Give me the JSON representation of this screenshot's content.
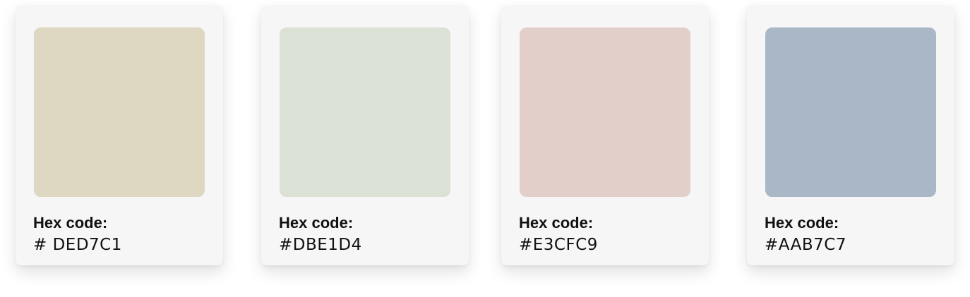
{
  "swatches": [
    {
      "label": "Hex code:",
      "code": "# DED7C1",
      "color": "#DED7C1"
    },
    {
      "label": "Hex code:",
      "code": "#DBE1D4",
      "color": "#DBE1D4"
    },
    {
      "label": "Hex code:",
      "code": "#E3CFC9",
      "color": "#E3CFC9"
    },
    {
      "label": "Hex code:",
      "code": "#AAB7C7",
      "color": "#AAB7C7"
    }
  ]
}
